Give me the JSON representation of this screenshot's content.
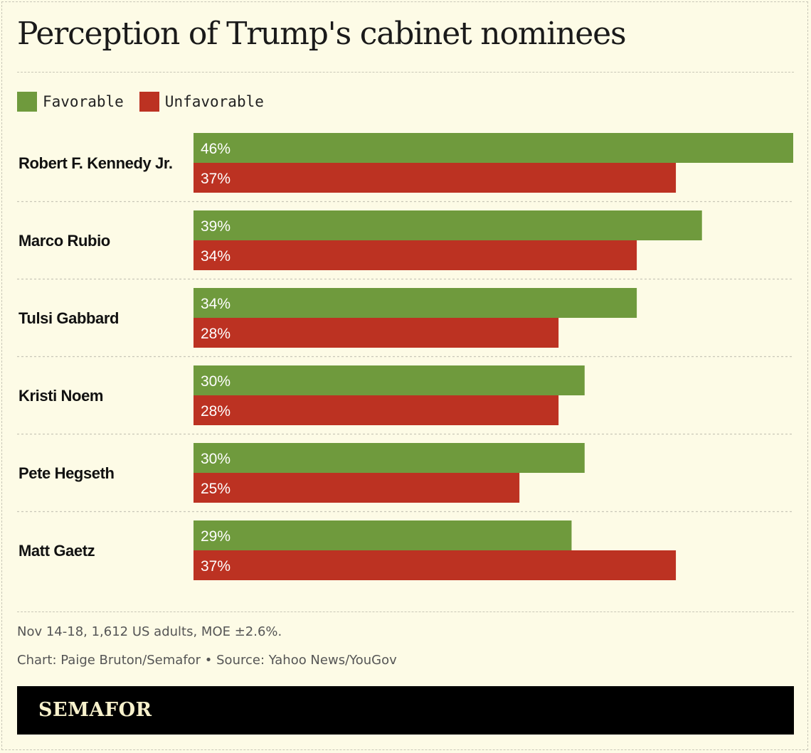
{
  "title": "Perception of Trump's cabinet nominees",
  "colors": {
    "favorable": "#6f9a3d",
    "unfavorable": "#bc3222"
  },
  "legend": {
    "favorable": "Favorable",
    "unfavorable": "Unfavorable"
  },
  "chart_data": {
    "type": "bar",
    "orientation": "horizontal",
    "title": "Perception of Trump's cabinet nominees",
    "categories": [
      "Robert F. Kennedy Jr.",
      "Marco Rubio",
      "Tulsi Gabbard",
      "Kristi Noem",
      "Pete Hegseth",
      "Matt Gaetz"
    ],
    "series": [
      {
        "name": "Favorable",
        "values": [
          46,
          39,
          34,
          30,
          30,
          29
        ]
      },
      {
        "name": "Unfavorable",
        "values": [
          37,
          34,
          28,
          28,
          25,
          37
        ]
      }
    ],
    "value_suffix": "%",
    "xlim": [
      0,
      46
    ],
    "legend_position": "top-left",
    "grid": false
  },
  "footnote": "Nov 14-18, 1,612 US adults, MOE ±2.6%.",
  "credit": "Chart: Paige Bruton/Semafor • Source: Yahoo News/YouGov",
  "brand": "SEMAFOR"
}
